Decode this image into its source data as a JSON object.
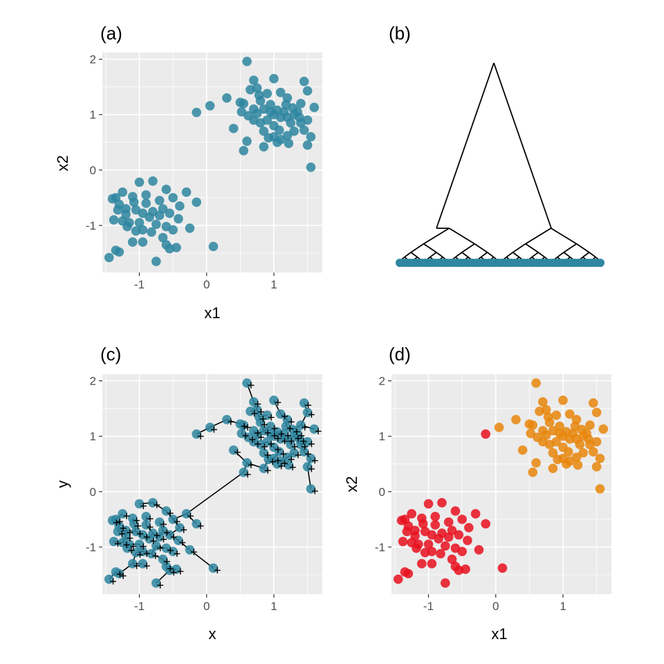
{
  "chart_data": [
    {
      "id": "a",
      "type": "scatter",
      "title": "(a)",
      "xlabel": "x1",
      "ylabel": "x2",
      "xlim": [
        -1.55,
        1.72
      ],
      "ylim": [
        -1.85,
        2.12
      ],
      "xticks": [
        -1,
        0,
        1
      ],
      "yticks": [
        -1,
        0,
        1,
        2
      ],
      "grid": true,
      "point_color": "#2e86a0"
    },
    {
      "id": "b",
      "type": "dendrogram",
      "title": "(b)",
      "leaf_color": "#2e86a0",
      "line_color": "#000000"
    },
    {
      "id": "c",
      "type": "scatter",
      "title": "(c)",
      "xlabel": "x",
      "ylabel": "y",
      "xlim": [
        -1.55,
        1.72
      ],
      "ylim": [
        -1.85,
        2.12
      ],
      "xticks": [
        -1,
        0,
        1
      ],
      "yticks": [
        -1,
        0,
        1,
        2
      ],
      "grid": true,
      "point_color": "#2e86a0",
      "marker_color": "#000000",
      "line_color": "#000000"
    },
    {
      "id": "d",
      "type": "scatter",
      "title": "(d)",
      "xlabel": "x1",
      "ylabel": "x2",
      "xlim": [
        -1.55,
        1.72
      ],
      "ylim": [
        -1.85,
        2.12
      ],
      "xticks": [
        -1,
        0,
        1
      ],
      "yticks": [
        -1,
        0,
        1,
        2
      ],
      "grid": true,
      "cluster_colors": [
        "#e8101e",
        "#e8860c"
      ]
    }
  ],
  "points": [
    [
      0.6,
      1.96
    ],
    [
      1.0,
      1.65
    ],
    [
      1.45,
      1.6
    ],
    [
      0.7,
      1.62
    ],
    [
      0.75,
      1.48
    ],
    [
      1.5,
      1.43
    ],
    [
      0.65,
      1.45
    ],
    [
      0.9,
      1.38
    ],
    [
      1.1,
      1.4
    ],
    [
      0.3,
      1.3
    ],
    [
      0.5,
      1.22
    ],
    [
      0.55,
      1.2
    ],
    [
      0.8,
      1.25
    ],
    [
      1.2,
      1.3
    ],
    [
      1.4,
      1.2
    ],
    [
      1.6,
      1.13
    ],
    [
      0.05,
      1.16
    ],
    [
      -0.15,
      1.04
    ],
    [
      0.7,
      1.1
    ],
    [
      0.85,
      1.1
    ],
    [
      0.95,
      1.05
    ],
    [
      1.0,
      1.0
    ],
    [
      1.05,
      1.08
    ],
    [
      1.1,
      0.95
    ],
    [
      1.15,
      1.05
    ],
    [
      1.2,
      0.95
    ],
    [
      1.3,
      1.0
    ],
    [
      1.35,
      1.05
    ],
    [
      1.5,
      0.9
    ],
    [
      0.9,
      0.9
    ],
    [
      0.8,
      0.85
    ],
    [
      0.7,
      0.9
    ],
    [
      1.0,
      0.8
    ],
    [
      1.25,
      0.85
    ],
    [
      1.4,
      0.85
    ],
    [
      1.45,
      0.72
    ],
    [
      1.55,
      0.6
    ],
    [
      0.4,
      0.75
    ],
    [
      0.85,
      0.7
    ],
    [
      1.0,
      0.6
    ],
    [
      1.1,
      0.55
    ],
    [
      1.2,
      0.62
    ],
    [
      0.6,
      0.52
    ],
    [
      1.55,
      0.05
    ],
    [
      1.5,
      0.45
    ],
    [
      0.85,
      0.42
    ],
    [
      0.55,
      0.35
    ],
    [
      1.05,
      0.5
    ],
    [
      1.3,
      0.7
    ],
    [
      0.95,
      1.18
    ],
    [
      0.75,
      1.02
    ],
    [
      1.28,
      1.12
    ],
    [
      1.18,
      1.18
    ],
    [
      0.62,
      0.98
    ],
    [
      1.08,
      0.72
    ],
    [
      0.92,
      0.58
    ],
    [
      1.38,
      0.95
    ],
    [
      0.78,
      1.35
    ],
    [
      0.52,
      1.05
    ],
    [
      1.22,
      0.48
    ],
    [
      -0.8,
      -0.2
    ],
    [
      -1.0,
      -0.22
    ],
    [
      -0.3,
      -0.4
    ],
    [
      -0.6,
      -0.35
    ],
    [
      -1.25,
      -0.4
    ],
    [
      -1.35,
      -0.5
    ],
    [
      -1.4,
      -0.52
    ],
    [
      -1.1,
      -0.48
    ],
    [
      -0.9,
      -0.6
    ],
    [
      -0.7,
      -0.55
    ],
    [
      -0.5,
      -0.5
    ],
    [
      -0.15,
      -0.58
    ],
    [
      -1.3,
      -0.62
    ],
    [
      -1.2,
      -0.7
    ],
    [
      -1.05,
      -0.72
    ],
    [
      -0.95,
      -0.78
    ],
    [
      -0.8,
      -0.75
    ],
    [
      -0.65,
      -0.7
    ],
    [
      -0.4,
      -0.65
    ],
    [
      -0.55,
      -0.78
    ],
    [
      -1.38,
      -0.9
    ],
    [
      -1.25,
      -0.92
    ],
    [
      -1.15,
      -0.95
    ],
    [
      -1.0,
      -0.95
    ],
    [
      -0.85,
      -0.85
    ],
    [
      -0.75,
      -0.98
    ],
    [
      -0.6,
      -1.02
    ],
    [
      -0.5,
      -1.08
    ],
    [
      -0.25,
      -1.05
    ],
    [
      -1.05,
      -1.1
    ],
    [
      -0.95,
      -1.08
    ],
    [
      -1.1,
      -1.3
    ],
    [
      -0.95,
      -1.3
    ],
    [
      -0.6,
      -1.35
    ],
    [
      -0.45,
      -1.4
    ],
    [
      -0.55,
      -1.42
    ],
    [
      -1.35,
      -1.45
    ],
    [
      -1.3,
      -1.48
    ],
    [
      -1.45,
      -1.58
    ],
    [
      -0.75,
      -1.65
    ],
    [
      0.1,
      -1.38
    ],
    [
      -1.2,
      -0.8
    ],
    [
      -0.9,
      -0.45
    ],
    [
      -0.7,
      -0.82
    ],
    [
      -1.18,
      -1.02
    ],
    [
      -0.65,
      -1.22
    ],
    [
      -0.42,
      -0.88
    ],
    [
      -1.32,
      -0.72
    ],
    [
      -0.82,
      -1.12
    ],
    [
      -1.08,
      -0.58
    ]
  ]
}
